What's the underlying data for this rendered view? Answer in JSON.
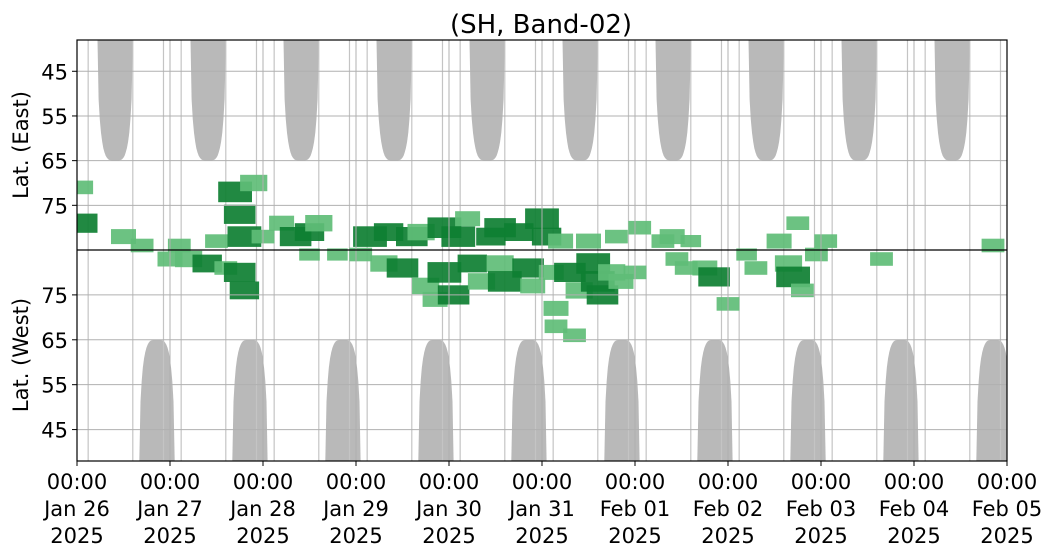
{
  "chart_data": {
    "type": "heatmap",
    "title": "(SH, Band-02)",
    "ylabel_top": "Lat. (East)",
    "ylabel_bottom": "Lat. (West)",
    "grid": true,
    "colors": {
      "night_shading": "#b9b9b9",
      "activity_dark": "#0e7f32",
      "activity_light": "#5fbd77",
      "grid": "#b0b0b0",
      "divider": "#000000"
    },
    "x_axis": {
      "start": "2025-01-26 00:00",
      "end": "2025-02-05 00:00",
      "ticks": [
        {
          "day": 0,
          "time": "00:00",
          "date": "Jan 26",
          "year": "2025"
        },
        {
          "day": 1,
          "time": "00:00",
          "date": "Jan 27",
          "year": "2025"
        },
        {
          "day": 2,
          "time": "00:00",
          "date": "Jan 28",
          "year": "2025"
        },
        {
          "day": 3,
          "time": "00:00",
          "date": "Jan 29",
          "year": "2025"
        },
        {
          "day": 4,
          "time": "00:00",
          "date": "Jan 30",
          "year": "2025"
        },
        {
          "day": 5,
          "time": "00:00",
          "date": "Jan 31",
          "year": "2025"
        },
        {
          "day": 6,
          "time": "00:00",
          "date": "Feb 01",
          "year": "2025"
        },
        {
          "day": 7,
          "time": "00:00",
          "date": "Feb 02",
          "year": "2025"
        },
        {
          "day": 8,
          "time": "00:00",
          "date": "Feb 03",
          "year": "2025"
        },
        {
          "day": 9,
          "time": "00:00",
          "date": "Feb 04",
          "year": "2025"
        },
        {
          "day": 10,
          "time": "00:00",
          "date": "Feb 05",
          "year": "2025"
        }
      ]
    },
    "y_axis": {
      "east_range": [
        38,
        85
      ],
      "west_range": [
        38,
        85
      ],
      "east_ticks": [
        "45",
        "55",
        "65",
        "75"
      ],
      "west_ticks": [
        "75",
        "65",
        "55",
        "45"
      ]
    },
    "night_shading_east": {
      "description": "daily high-latitude east coverage gaps",
      "start_days": [
        0.22,
        1.22,
        2.22,
        3.22,
        4.22,
        5.22,
        6.22,
        7.22,
        8.22,
        9.22
      ],
      "width_days": 0.38,
      "min_lat": 65
    },
    "night_shading_west": {
      "start_days": [
        0.67,
        1.67,
        2.67,
        3.67,
        4.67,
        5.67,
        6.67,
        7.67,
        8.67,
        9.67
      ],
      "width_days": 0.38,
      "min_lat": 65
    },
    "activity": [
      {
        "day": 0.05,
        "side": "east",
        "lat": 79,
        "level": 0.8
      },
      {
        "day": 0.05,
        "side": "east",
        "lat": 71,
        "level": 0.4
      },
      {
        "day": 0.5,
        "side": "east",
        "lat": 82,
        "level": 0.5
      },
      {
        "day": 0.7,
        "side": "east",
        "lat": 84,
        "level": 0.4
      },
      {
        "day": 1.0,
        "side": "west",
        "lat": 83,
        "level": 0.5
      },
      {
        "day": 1.1,
        "side": "east",
        "lat": 84,
        "level": 0.4
      },
      {
        "day": 1.2,
        "side": "west",
        "lat": 83,
        "level": 0.6
      },
      {
        "day": 1.4,
        "side": "west",
        "lat": 82,
        "level": 0.7
      },
      {
        "day": 1.6,
        "side": "west",
        "lat": 81,
        "level": 0.4
      },
      {
        "day": 1.5,
        "side": "east",
        "lat": 83,
        "level": 0.4
      },
      {
        "day": 1.7,
        "side": "east",
        "lat": 72,
        "level": 0.9
      },
      {
        "day": 1.75,
        "side": "east",
        "lat": 77,
        "level": 0.8
      },
      {
        "day": 1.8,
        "side": "east",
        "lat": 82,
        "level": 0.9
      },
      {
        "day": 1.75,
        "side": "west",
        "lat": 80,
        "level": 0.8
      },
      {
        "day": 1.8,
        "side": "west",
        "lat": 76,
        "level": 0.7
      },
      {
        "day": 1.9,
        "side": "east",
        "lat": 70,
        "level": 0.6
      },
      {
        "day": 2.0,
        "side": "east",
        "lat": 82,
        "level": 0.4
      },
      {
        "day": 2.2,
        "side": "east",
        "lat": 79,
        "level": 0.5
      },
      {
        "day": 2.35,
        "side": "east",
        "lat": 82,
        "level": 0.8
      },
      {
        "day": 2.5,
        "side": "east",
        "lat": 81,
        "level": 0.7
      },
      {
        "day": 2.6,
        "side": "east",
        "lat": 79,
        "level": 0.6
      },
      {
        "day": 2.5,
        "side": "west",
        "lat": 84,
        "level": 0.3
      },
      {
        "day": 2.8,
        "side": "west",
        "lat": 84,
        "level": 0.3
      },
      {
        "day": 3.05,
        "side": "west",
        "lat": 84,
        "level": 0.4
      },
      {
        "day": 3.15,
        "side": "east",
        "lat": 82,
        "level": 0.9
      },
      {
        "day": 3.35,
        "side": "east",
        "lat": 81,
        "level": 0.7
      },
      {
        "day": 3.3,
        "side": "west",
        "lat": 82,
        "level": 0.6
      },
      {
        "day": 3.5,
        "side": "west",
        "lat": 81,
        "level": 0.8
      },
      {
        "day": 3.6,
        "side": "east",
        "lat": 82,
        "level": 0.8
      },
      {
        "day": 3.7,
        "side": "east",
        "lat": 81,
        "level": 0.6
      },
      {
        "day": 3.75,
        "side": "west",
        "lat": 77,
        "level": 0.6
      },
      {
        "day": 3.85,
        "side": "west",
        "lat": 74,
        "level": 0.5
      },
      {
        "day": 3.95,
        "side": "east",
        "lat": 80,
        "level": 0.9
      },
      {
        "day": 3.95,
        "side": "west",
        "lat": 80,
        "level": 0.9
      },
      {
        "day": 4.05,
        "side": "west",
        "lat": 75,
        "level": 0.8
      },
      {
        "day": 4.1,
        "side": "east",
        "lat": 82,
        "level": 0.9
      },
      {
        "day": 4.2,
        "side": "east",
        "lat": 78,
        "level": 0.5
      },
      {
        "day": 4.25,
        "side": "west",
        "lat": 82,
        "level": 0.7
      },
      {
        "day": 4.35,
        "side": "west",
        "lat": 78,
        "level": 0.6
      },
      {
        "day": 4.45,
        "side": "east",
        "lat": 82,
        "level": 0.7
      },
      {
        "day": 4.55,
        "side": "east",
        "lat": 80,
        "level": 0.8
      },
      {
        "day": 4.55,
        "side": "west",
        "lat": 82,
        "level": 0.6
      },
      {
        "day": 4.6,
        "side": "west",
        "lat": 78,
        "level": 0.9
      },
      {
        "day": 4.75,
        "side": "east",
        "lat": 81,
        "level": 0.7
      },
      {
        "day": 4.85,
        "side": "west",
        "lat": 81,
        "level": 0.8
      },
      {
        "day": 4.9,
        "side": "west",
        "lat": 77,
        "level": 0.5
      },
      {
        "day": 5.0,
        "side": "east",
        "lat": 78,
        "level": 0.9
      },
      {
        "day": 5.05,
        "side": "east",
        "lat": 82,
        "level": 0.7
      },
      {
        "day": 5.1,
        "side": "west",
        "lat": 80,
        "level": 0.5
      },
      {
        "day": 5.2,
        "side": "east",
        "lat": 83,
        "level": 0.5
      },
      {
        "day": 5.15,
        "side": "west",
        "lat": 72,
        "level": 0.5
      },
      {
        "day": 5.15,
        "side": "west",
        "lat": 68,
        "level": 0.4
      },
      {
        "day": 5.3,
        "side": "west",
        "lat": 80,
        "level": 0.8
      },
      {
        "day": 5.4,
        "side": "west",
        "lat": 76,
        "level": 0.6
      },
      {
        "day": 5.35,
        "side": "west",
        "lat": 66,
        "level": 0.4
      },
      {
        "day": 5.5,
        "side": "east",
        "lat": 83,
        "level": 0.5
      },
      {
        "day": 5.55,
        "side": "west",
        "lat": 82,
        "level": 0.9
      },
      {
        "day": 5.6,
        "side": "west",
        "lat": 78,
        "level": 0.9
      },
      {
        "day": 5.65,
        "side": "west",
        "lat": 75,
        "level": 0.8
      },
      {
        "day": 5.75,
        "side": "west",
        "lat": 80,
        "level": 0.6
      },
      {
        "day": 5.85,
        "side": "west",
        "lat": 78,
        "level": 0.5
      },
      {
        "day": 5.8,
        "side": "east",
        "lat": 82,
        "level": 0.4
      },
      {
        "day": 6.0,
        "side": "west",
        "lat": 80,
        "level": 0.4
      },
      {
        "day": 6.05,
        "side": "east",
        "lat": 80,
        "level": 0.4
      },
      {
        "day": 6.3,
        "side": "east",
        "lat": 83,
        "level": 0.4
      },
      {
        "day": 6.4,
        "side": "east",
        "lat": 82,
        "level": 0.5
      },
      {
        "day": 6.45,
        "side": "west",
        "lat": 83,
        "level": 0.4
      },
      {
        "day": 6.55,
        "side": "west",
        "lat": 81,
        "level": 0.4
      },
      {
        "day": 6.6,
        "side": "east",
        "lat": 83,
        "level": 0.3
      },
      {
        "day": 6.75,
        "side": "west",
        "lat": 81,
        "level": 0.5
      },
      {
        "day": 6.85,
        "side": "west",
        "lat": 79,
        "level": 0.8
      },
      {
        "day": 7.0,
        "side": "west",
        "lat": 73,
        "level": 0.4
      },
      {
        "day": 7.2,
        "side": "west",
        "lat": 84,
        "level": 0.3
      },
      {
        "day": 7.3,
        "side": "west",
        "lat": 81,
        "level": 0.4
      },
      {
        "day": 7.55,
        "side": "east",
        "lat": 83,
        "level": 0.5
      },
      {
        "day": 7.65,
        "side": "west",
        "lat": 82,
        "level": 0.6
      },
      {
        "day": 7.7,
        "side": "west",
        "lat": 79,
        "level": 0.9
      },
      {
        "day": 7.75,
        "side": "east",
        "lat": 79,
        "level": 0.4
      },
      {
        "day": 7.8,
        "side": "west",
        "lat": 76,
        "level": 0.4
      },
      {
        "day": 7.95,
        "side": "west",
        "lat": 84,
        "level": 0.4
      },
      {
        "day": 8.05,
        "side": "east",
        "lat": 83,
        "level": 0.4
      },
      {
        "day": 8.65,
        "side": "west",
        "lat": 83,
        "level": 0.4
      },
      {
        "day": 9.85,
        "side": "east",
        "lat": 84,
        "level": 0.4
      }
    ]
  }
}
